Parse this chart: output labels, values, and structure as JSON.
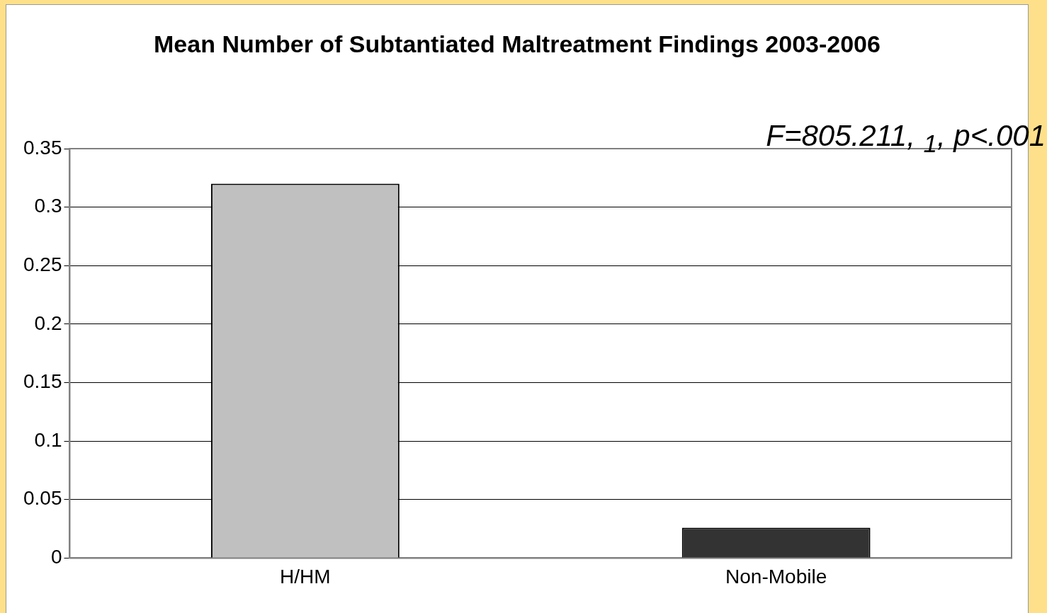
{
  "chart_data": {
    "type": "bar",
    "title": "Mean Number of Subtantiated Maltreatment Findings 2003-2006",
    "categories": [
      "H/HM",
      "Non-Mobile"
    ],
    "colors": [
      "#c0c0c0",
      "#333333"
    ],
    "values": [
      0.32,
      0.026
    ],
    "ylim": [
      0,
      0.35
    ],
    "yticks": [
      0,
      0.05,
      0.1,
      0.15,
      0.2,
      0.25,
      0.3,
      0.35
    ],
    "grid": "y",
    "legend": false,
    "annotations": [
      "F=805.211, $_{1}$, p<.001"
    ]
  }
}
